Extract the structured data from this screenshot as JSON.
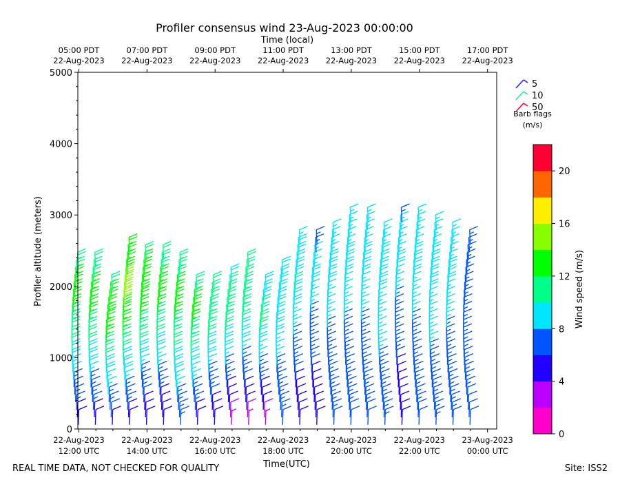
{
  "chart_data": {
    "type": "wind-barb-profile",
    "title": "Profiler consensus wind 23-Aug-2023 00:00:00",
    "top_axis_label": "Time (local)",
    "xlabel": "Time(UTC)",
    "ylabel": "Profiler altitude (meters)",
    "x_range_hours_utc": [
      11.97,
      24.27
    ],
    "ylim": [
      0,
      5000
    ],
    "y_ticks": [
      0,
      1000,
      2000,
      3000,
      4000,
      5000
    ],
    "bottom_ticks": [
      {
        "hour": 12,
        "line1": "22-Aug-2023",
        "line2": "12:00 UTC"
      },
      {
        "hour": 14,
        "line1": "22-Aug-2023",
        "line2": "14:00 UTC"
      },
      {
        "hour": 16,
        "line1": "22-Aug-2023",
        "line2": "16:00 UTC"
      },
      {
        "hour": 18,
        "line1": "22-Aug-2023",
        "line2": "18:00 UTC"
      },
      {
        "hour": 20,
        "line1": "22-Aug-2023",
        "line2": "20:00 UTC"
      },
      {
        "hour": 22,
        "line1": "22-Aug-2023",
        "line2": "22:00 UTC"
      },
      {
        "hour": 24,
        "line1": "23-Aug-2023",
        "line2": "00:00 UTC"
      }
    ],
    "top_ticks": [
      {
        "hour": 12,
        "line1": "05:00 PDT",
        "line2": "22-Aug-2023"
      },
      {
        "hour": 14,
        "line1": "07:00 PDT",
        "line2": "22-Aug-2023"
      },
      {
        "hour": 16,
        "line1": "09:00 PDT",
        "line2": "22-Aug-2023"
      },
      {
        "hour": 18,
        "line1": "11:00 PDT",
        "line2": "22-Aug-2023"
      },
      {
        "hour": 20,
        "line1": "13:00 PDT",
        "line2": "22-Aug-2023"
      },
      {
        "hour": 22,
        "line1": "15:00 PDT",
        "line2": "22-Aug-2023"
      },
      {
        "hour": 24,
        "line1": "17:00 PDT",
        "line2": "22-Aug-2023"
      }
    ],
    "profiles": [
      {
        "hour": 12.0,
        "top": 2350,
        "peak": 13,
        "low": 5
      },
      {
        "hour": 12.5,
        "top": 2300,
        "peak": 13,
        "low": 5
      },
      {
        "hour": 13.0,
        "top": 2000,
        "peak": 14,
        "low": 5
      },
      {
        "hour": 13.5,
        "top": 2500,
        "peak": 15,
        "low": 5
      },
      {
        "hour": 14.0,
        "top": 2450,
        "peak": 14,
        "low": 4
      },
      {
        "hour": 14.5,
        "top": 2400,
        "peak": 13,
        "low": 4
      },
      {
        "hour": 15.0,
        "top": 2300,
        "peak": 13,
        "low": 6
      },
      {
        "hour": 15.5,
        "top": 2050,
        "peak": 13,
        "low": 5
      },
      {
        "hour": 16.0,
        "top": 2050,
        "peak": 12,
        "low": 4
      },
      {
        "hour": 16.5,
        "top": 2100,
        "peak": 12,
        "low": 3
      },
      {
        "hour": 17.0,
        "top": 2350,
        "peak": 12,
        "low": 3
      },
      {
        "hour": 17.5,
        "top": 1950,
        "peak": 11,
        "low": 3
      },
      {
        "hour": 18.0,
        "top": 2200,
        "peak": 10,
        "low": 6
      },
      {
        "hour": 18.5,
        "top": 2600,
        "peak": 10,
        "low": 4
      },
      {
        "hour": 19.0,
        "top": 2600,
        "peak": 9,
        "low": 4
      },
      {
        "hour": 19.5,
        "top": 2750,
        "peak": 9,
        "low": 6
      },
      {
        "hour": 20.0,
        "top": 2950,
        "peak": 9,
        "low": 6
      },
      {
        "hour": 20.5,
        "top": 2900,
        "peak": 9,
        "low": 6
      },
      {
        "hour": 21.0,
        "top": 2750,
        "peak": 9,
        "low": 7
      },
      {
        "hour": 21.5,
        "top": 2950,
        "peak": 9,
        "low": 4
      },
      {
        "hour": 22.0,
        "top": 2950,
        "peak": 9,
        "low": 6
      },
      {
        "hour": 22.5,
        "top": 2800,
        "peak": 9,
        "low": 7
      },
      {
        "hour": 23.0,
        "top": 2700,
        "peak": 9,
        "low": 6
      },
      {
        "hour": 23.5,
        "top": 2600,
        "peak": 7,
        "low": 6
      }
    ],
    "legend": {
      "entries": [
        {
          "label": "5",
          "speed": 5,
          "color": "#2222ff"
        },
        {
          "label": "10",
          "speed": 10,
          "color": "#22ee88"
        },
        {
          "label": "50",
          "speed": 50,
          "color": "#ff0033"
        }
      ],
      "caption_line1": "Barb flags",
      "caption_line2": "(m/s)",
      "placement": "top-right"
    },
    "colorbar": {
      "label": "Wind speed (m/s)",
      "min": 0,
      "max": 22,
      "ticks": [
        0,
        4,
        8,
        12,
        16,
        20
      ],
      "colors": [
        "#ff00cc",
        "#bb00ff",
        "#2200ff",
        "#0055ff",
        "#00e6ff",
        "#00ff88",
        "#00ff00",
        "#88ff00",
        "#ffee00",
        "#ff6600",
        "#ff0033"
      ]
    }
  },
  "footer": {
    "disclaimer": "REAL TIME DATA, NOT CHECKED FOR QUALITY",
    "site": "Site: ISS2"
  }
}
